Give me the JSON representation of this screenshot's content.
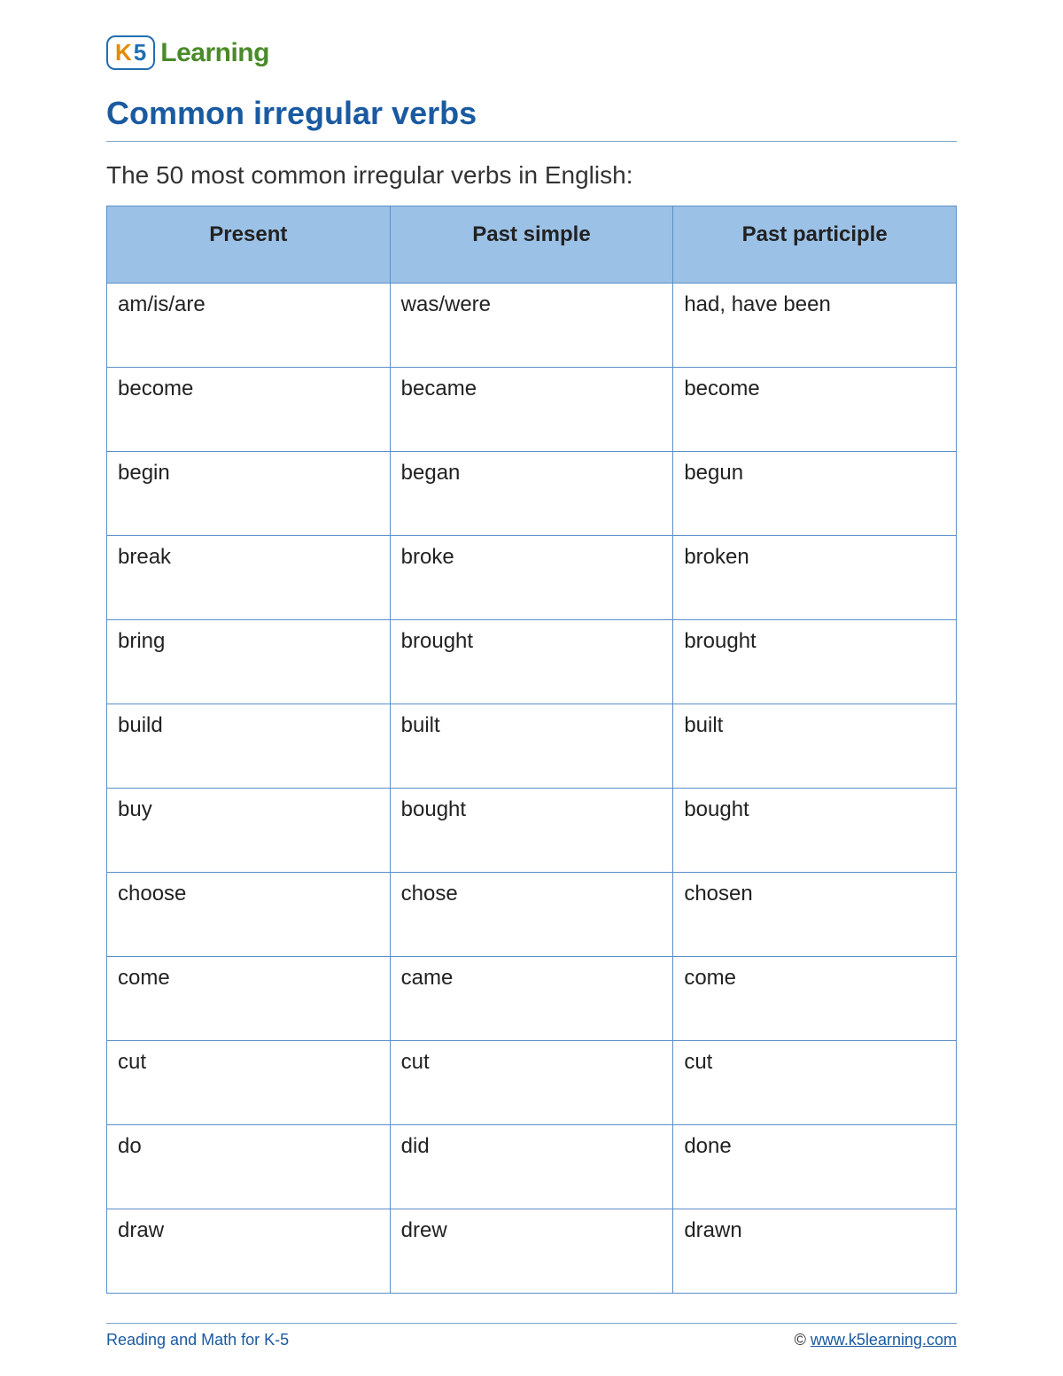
{
  "logo": {
    "badge_k": "K",
    "badge_5": "5",
    "text": "Learning"
  },
  "title": "Common irregular verbs",
  "subtitle": "The 50 most common irregular verbs in English:",
  "table": {
    "headers": [
      "Present",
      "Past simple",
      "Past participle"
    ],
    "rows": [
      [
        "am/is/are",
        "was/were",
        "had, have been"
      ],
      [
        "become",
        "became",
        "become"
      ],
      [
        "begin",
        "began",
        "begun"
      ],
      [
        "break",
        "broke",
        "broken"
      ],
      [
        "bring",
        "brought",
        "brought"
      ],
      [
        "build",
        "built",
        "built"
      ],
      [
        "buy",
        "bought",
        "bought"
      ],
      [
        "choose",
        "chose",
        "chosen"
      ],
      [
        "come",
        "came",
        "come"
      ],
      [
        "cut",
        "cut",
        "cut"
      ],
      [
        "do",
        "did",
        "done"
      ],
      [
        "draw",
        "drew",
        "drawn"
      ]
    ],
    "header_bg": "#9bc1e6",
    "border_color": "#5a8fc7",
    "header_fontsize": 24,
    "cell_fontsize": 24
  },
  "footer": {
    "left": "Reading and Math for K-5",
    "copyright": "©",
    "url": "www.k5learning.com"
  },
  "colors": {
    "title": "#1a5aa0",
    "rule": "#7aa4c9",
    "logo_green": "#4a8a2a",
    "logo_blue": "#1f6fb2",
    "logo_orange": "#e68a00"
  }
}
